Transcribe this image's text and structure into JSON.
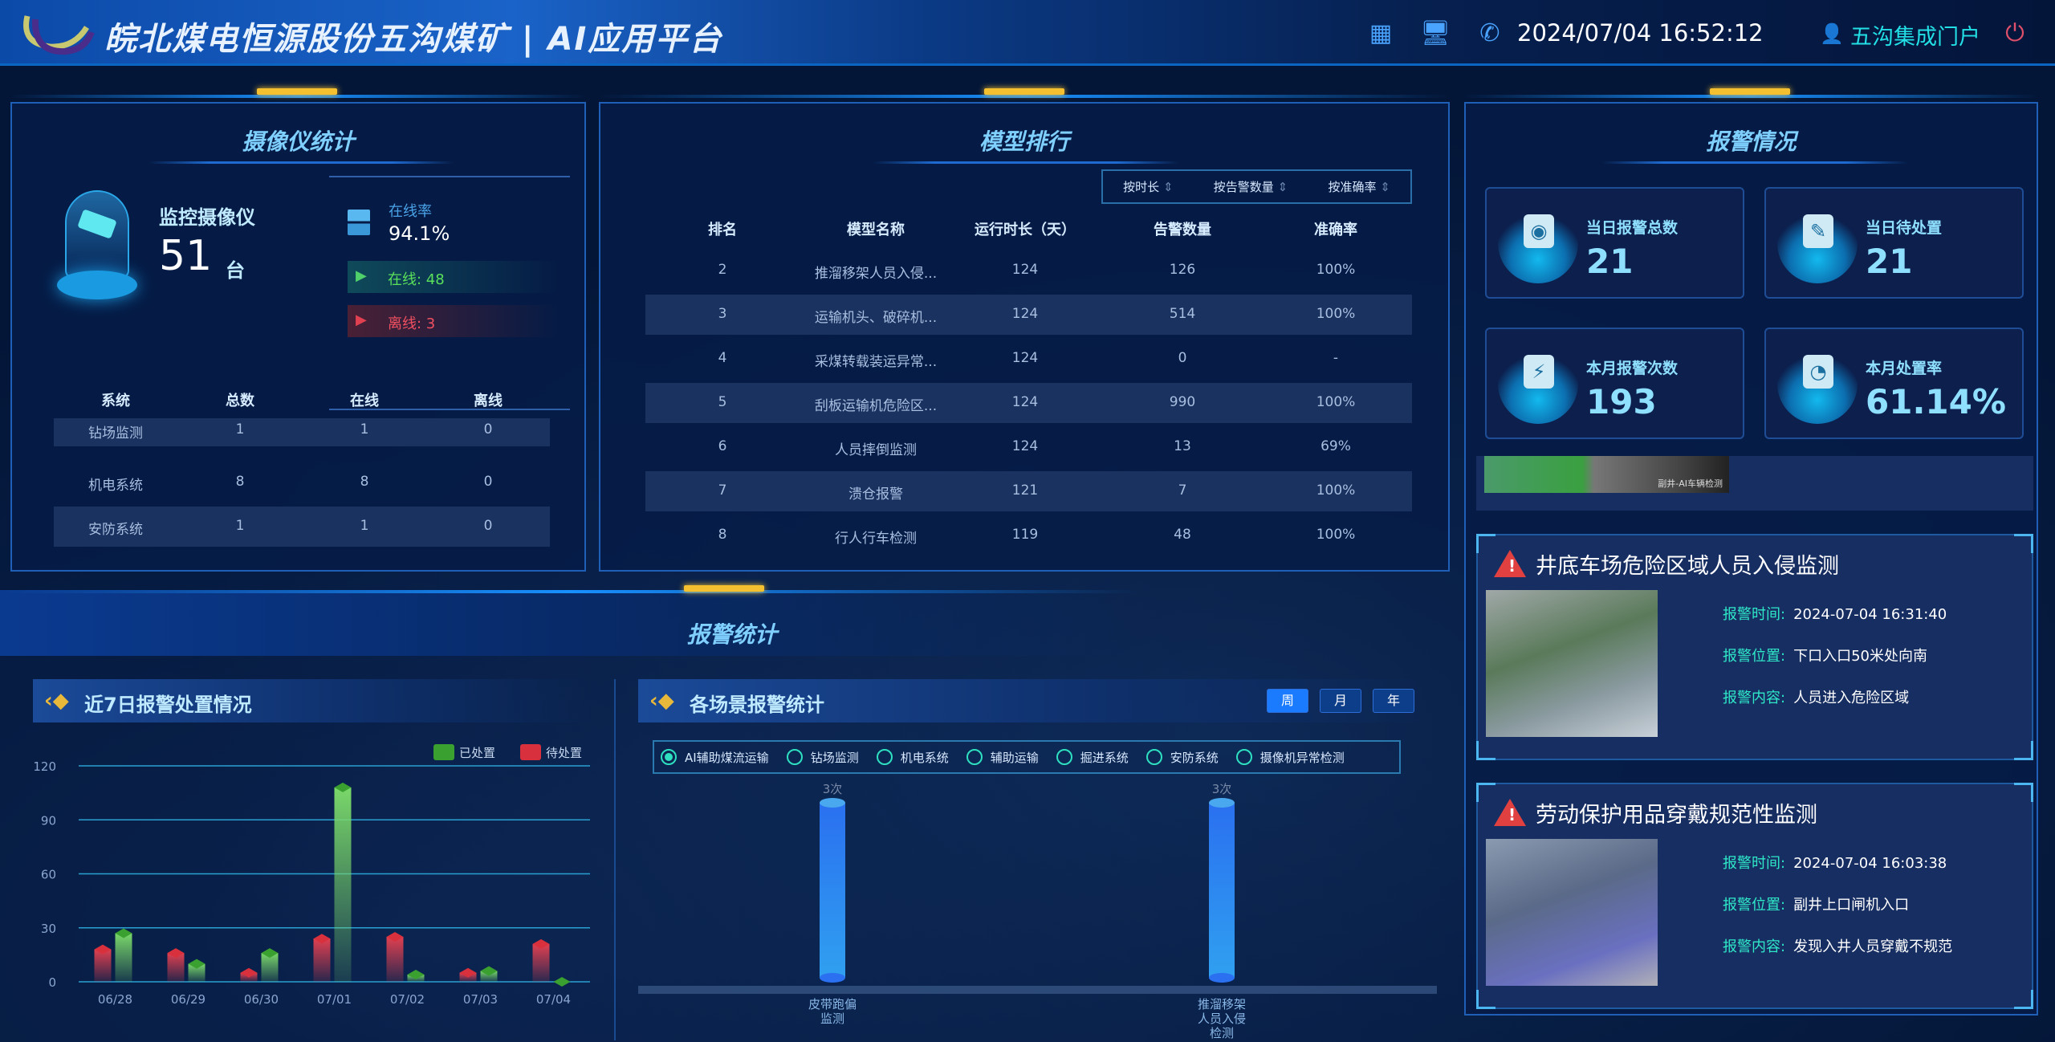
{
  "header": {
    "title": "皖北煤电恒源股份五沟煤矿 | AI应用平台",
    "datetime": "2024/07/04 16:52:12",
    "portal": "五沟集成门户",
    "icons": [
      "grid-icon",
      "monitor-settings-icon",
      "phone-icon",
      "user-icon",
      "power-icon"
    ]
  },
  "camera": {
    "title": "摄像仪统计",
    "label": "监控摄像仪",
    "count": "51",
    "unit": "台",
    "rate_label": "在线率",
    "rate": "94.1%",
    "online": "在线:  48",
    "offline": "离线:  3",
    "columns": [
      "系统",
      "总数",
      "在线",
      "离线"
    ],
    "rows": [
      [
        "钻场监测",
        "1",
        "1",
        "0"
      ],
      [
        "机电系统",
        "8",
        "8",
        "0"
      ],
      [
        "安防系统",
        "1",
        "1",
        "0"
      ]
    ]
  },
  "ranking": {
    "title": "模型排行",
    "sorts": [
      "按时长",
      "按告警数量",
      "按准确率"
    ],
    "columns": [
      "排名",
      "模型名称",
      "运行时长（天）",
      "告警数量",
      "准确率"
    ],
    "rows": [
      [
        "2",
        "推溜移架人员入侵...",
        "124",
        "126",
        "100%"
      ],
      [
        "3",
        "运输机头、破碎机...",
        "124",
        "514",
        "100%"
      ],
      [
        "4",
        "采煤转载装运异常...",
        "124",
        "0",
        "-"
      ],
      [
        "5",
        "刮板运输机危险区...",
        "124",
        "990",
        "100%"
      ],
      [
        "6",
        "人员摔倒监测",
        "124",
        "13",
        "69%"
      ],
      [
        "7",
        "溃仓报警",
        "121",
        "7",
        "100%"
      ],
      [
        "8",
        "行人行车检测",
        "119",
        "48",
        "100%"
      ]
    ]
  },
  "alarm_stats": {
    "title": "报警统计"
  },
  "colors": {
    "handled": "#3aa030",
    "pending": "#d8303c",
    "accent": "#1a7bff",
    "bar": "#2a8cf0"
  },
  "chart_data": [
    {
      "type": "bar",
      "title": "近7日报警处置情况",
      "categories": [
        "06/28",
        "06/29",
        "06/30",
        "07/01",
        "07/02",
        "07/03",
        "07/04"
      ],
      "series": [
        {
          "name": "待处置",
          "values": [
            18,
            16,
            5,
            24,
            25,
            5,
            21
          ]
        },
        {
          "name": "已处置",
          "values": [
            27,
            10,
            16,
            108,
            4,
            6,
            0
          ]
        }
      ],
      "legend": [
        "已处置",
        "待处置"
      ],
      "legend_position": "top-right",
      "ylim": [
        0,
        120
      ],
      "yticks": [
        0,
        30,
        60,
        90,
        120
      ],
      "grid": true
    },
    {
      "type": "bar",
      "title": "各场景报警统计",
      "periods": [
        "周",
        "月",
        "年"
      ],
      "selected_period": "周",
      "filters": [
        "AI辅助煤流运输",
        "钻场监测",
        "机电系统",
        "辅助运输",
        "掘进系统",
        "安防系统",
        "摄像机异常检测"
      ],
      "selected_filter": "AI辅助煤流运输",
      "categories": [
        "皮带跑偏监测",
        "推溜移架人员入侵检测"
      ],
      "values": [
        3,
        3
      ],
      "value_labels": [
        "3次",
        "3次"
      ]
    }
  ],
  "alarm": {
    "title": "报警情况",
    "stats": [
      {
        "label": "当日报警总数",
        "value": "21",
        "icon": "siren-icon"
      },
      {
        "label": "当日待处置",
        "value": "21",
        "icon": "document-icon"
      },
      {
        "label": "本月报警次数",
        "value": "193",
        "icon": "alarm-bolt-icon"
      },
      {
        "label": "本月处置率",
        "value": "61.14%",
        "icon": "pie-icon"
      }
    ],
    "strip_caption": "副井-AI车辆检测",
    "items": [
      {
        "title": "井底车场危险区域人员入侵监测",
        "time_label": "报警时间:",
        "time": "2024-07-04 16:31:40",
        "loc_label": "报警位置:",
        "loc": "下口入口50米处向南",
        "content_label": "报警内容:",
        "content": "人员进入危险区域"
      },
      {
        "title": "劳动保护用品穿戴规范性监测",
        "time_label": "报警时间:",
        "time": "2024-07-04 16:03:38",
        "loc_label": "报警位置:",
        "loc": "副井上口闸机入口",
        "content_label": "报警内容:",
        "content": "发现入井人员穿戴不规范"
      }
    ]
  }
}
